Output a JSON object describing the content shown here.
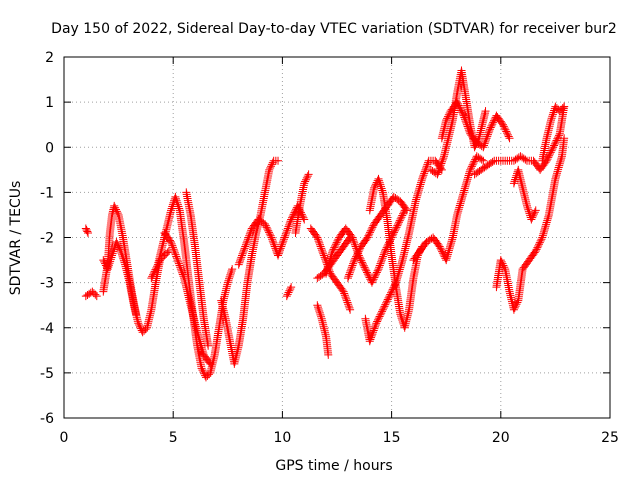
{
  "chart_data": {
    "type": "scatter",
    "title": "Day 150 of 2022, Sidereal Day-to-day VTEC variation (SDTVAR) for receiver bur2",
    "xlabel": "GPS time / hours",
    "ylabel": "SDTVAR / TECUs",
    "xlim": [
      0,
      25
    ],
    "ylim": [
      -6,
      2
    ],
    "xticks": [
      0,
      5,
      10,
      15,
      20,
      25
    ],
    "yticks": [
      -6,
      -5,
      -4,
      -3,
      -2,
      -1,
      0,
      1,
      2
    ],
    "xtick_labels": [
      "0",
      "5",
      "10",
      "15",
      "20",
      "25"
    ],
    "ytick_labels": [
      "-6",
      "-5",
      "-4",
      "-3",
      "-2",
      "-1",
      "0",
      "1",
      "2"
    ],
    "grid": true,
    "marker": "+",
    "series": [
      {
        "name": "bur2",
        "color": "#ff0000",
        "tracks": [
          [
            [
              1.0,
              -1.8
            ],
            [
              1.1,
              -1.9
            ]
          ],
          [
            [
              1.0,
              -3.3
            ],
            [
              1.3,
              -3.2
            ],
            [
              1.5,
              -3.3
            ]
          ],
          [
            [
              1.8,
              -2.5
            ],
            [
              2.0,
              -2.7
            ],
            [
              2.2,
              -2.4
            ],
            [
              2.4,
              -2.1
            ],
            [
              2.6,
              -2.3
            ],
            [
              2.8,
              -2.6
            ],
            [
              3.0,
              -3.0
            ],
            [
              3.2,
              -3.5
            ],
            [
              3.4,
              -3.9
            ],
            [
              3.6,
              -4.1
            ],
            [
              3.8,
              -4.0
            ],
            [
              4.0,
              -3.6
            ],
            [
              4.2,
              -3.0
            ],
            [
              4.4,
              -2.5
            ],
            [
              4.6,
              -2.4
            ],
            [
              4.8,
              -2.3
            ]
          ],
          [
            [
              1.8,
              -3.2
            ],
            [
              2.0,
              -2.6
            ],
            [
              2.1,
              -1.9
            ],
            [
              2.2,
              -1.5
            ],
            [
              2.3,
              -1.3
            ],
            [
              2.5,
              -1.5
            ],
            [
              2.7,
              -2.0
            ],
            [
              2.9,
              -2.6
            ],
            [
              3.1,
              -3.2
            ],
            [
              3.3,
              -3.7
            ]
          ],
          [
            [
              4.0,
              -2.9
            ],
            [
              4.3,
              -2.6
            ],
            [
              4.6,
              -2.0
            ],
            [
              4.9,
              -1.4
            ],
            [
              5.1,
              -1.1
            ],
            [
              5.3,
              -1.4
            ],
            [
              5.5,
              -2.1
            ],
            [
              5.7,
              -2.9
            ],
            [
              5.9,
              -3.7
            ],
            [
              6.1,
              -4.4
            ],
            [
              6.3,
              -4.9
            ],
            [
              6.5,
              -5.1
            ],
            [
              6.7,
              -5.0
            ],
            [
              6.9,
              -4.6
            ],
            [
              7.1,
              -4.0
            ],
            [
              7.3,
              -3.4
            ],
            [
              7.5,
              -3.0
            ],
            [
              7.7,
              -2.7
            ]
          ],
          [
            [
              4.6,
              -1.9
            ],
            [
              4.9,
              -2.1
            ],
            [
              5.2,
              -2.5
            ],
            [
              5.5,
              -2.9
            ],
            [
              5.8,
              -3.5
            ],
            [
              6.1,
              -4.1
            ],
            [
              6.4,
              -4.6
            ],
            [
              6.7,
              -4.8
            ]
          ],
          [
            [
              5.6,
              -1.0
            ],
            [
              5.8,
              -1.5
            ],
            [
              6.0,
              -2.2
            ],
            [
              6.2,
              -3.0
            ],
            [
              6.4,
              -3.8
            ],
            [
              6.6,
              -4.4
            ]
          ],
          [
            [
              7.2,
              -3.4
            ],
            [
              7.4,
              -3.8
            ],
            [
              7.6,
              -4.3
            ],
            [
              7.8,
              -4.8
            ],
            [
              8.0,
              -4.4
            ],
            [
              8.2,
              -3.8
            ],
            [
              8.4,
              -3.0
            ],
            [
              8.6,
              -2.4
            ],
            [
              8.8,
              -1.9
            ],
            [
              9.0,
              -1.5
            ],
            [
              9.2,
              -1.0
            ],
            [
              9.4,
              -0.5
            ],
            [
              9.6,
              -0.3
            ],
            [
              9.8,
              -0.3
            ]
          ],
          [
            [
              8.0,
              -2.6
            ],
            [
              8.3,
              -2.2
            ],
            [
              8.6,
              -1.8
            ],
            [
              8.9,
              -1.6
            ],
            [
              9.2,
              -1.7
            ],
            [
              9.5,
              -2.0
            ],
            [
              9.8,
              -2.4
            ],
            [
              10.1,
              -2.0
            ],
            [
              10.4,
              -1.6
            ],
            [
              10.7,
              -1.3
            ],
            [
              11.0,
              -1.6
            ]
          ],
          [
            [
              10.2,
              -3.3
            ],
            [
              10.4,
              -3.1
            ]
          ],
          [
            [
              10.6,
              -1.9
            ],
            [
              10.8,
              -1.3
            ],
            [
              11.0,
              -0.8
            ],
            [
              11.2,
              -0.6
            ]
          ],
          [
            [
              11.3,
              -1.8
            ],
            [
              11.6,
              -2.0
            ],
            [
              11.9,
              -2.4
            ],
            [
              12.2,
              -2.8
            ],
            [
              12.5,
              -3.0
            ],
            [
              12.8,
              -3.2
            ],
            [
              13.1,
              -3.6
            ]
          ],
          [
            [
              11.6,
              -3.5
            ],
            [
              11.8,
              -3.8
            ],
            [
              12.0,
              -4.2
            ],
            [
              12.1,
              -4.6
            ]
          ],
          [
            [
              11.6,
              -2.9
            ],
            [
              11.9,
              -2.8
            ],
            [
              12.2,
              -2.6
            ],
            [
              12.5,
              -2.4
            ],
            [
              12.8,
              -2.2
            ],
            [
              13.1,
              -2.0
            ]
          ],
          [
            [
              12.0,
              -2.8
            ],
            [
              12.3,
              -2.3
            ],
            [
              12.6,
              -2.0
            ],
            [
              12.9,
              -1.8
            ],
            [
              13.2,
              -2.0
            ],
            [
              13.5,
              -2.4
            ],
            [
              13.8,
              -2.7
            ],
            [
              14.1,
              -3.0
            ],
            [
              14.4,
              -2.7
            ],
            [
              14.7,
              -2.3
            ],
            [
              15.0,
              -2.0
            ],
            [
              15.3,
              -1.7
            ],
            [
              15.6,
              -1.4
            ]
          ],
          [
            [
              13.0,
              -2.9
            ],
            [
              13.3,
              -2.5
            ],
            [
              13.6,
              -2.2
            ],
            [
              13.9,
              -2.0
            ],
            [
              14.2,
              -1.7
            ],
            [
              14.5,
              -1.5
            ],
            [
              14.8,
              -1.3
            ],
            [
              15.1,
              -1.1
            ],
            [
              15.4,
              -1.2
            ],
            [
              15.7,
              -1.4
            ]
          ],
          [
            [
              13.8,
              -3.8
            ],
            [
              14.0,
              -4.3
            ],
            [
              14.3,
              -3.9
            ],
            [
              14.6,
              -3.6
            ],
            [
              14.9,
              -3.3
            ],
            [
              15.2,
              -3.0
            ],
            [
              15.5,
              -2.5
            ],
            [
              15.8,
              -1.9
            ],
            [
              16.1,
              -1.2
            ],
            [
              16.4,
              -0.7
            ],
            [
              16.7,
              -0.3
            ],
            [
              17.0,
              -0.3
            ],
            [
              17.3,
              -0.5
            ]
          ],
          [
            [
              14.0,
              -1.4
            ],
            [
              14.2,
              -0.9
            ],
            [
              14.4,
              -0.7
            ],
            [
              14.6,
              -1.0
            ],
            [
              14.8,
              -1.6
            ],
            [
              15.0,
              -2.4
            ],
            [
              15.2,
              -3.1
            ],
            [
              15.4,
              -3.7
            ],
            [
              15.6,
              -4.0
            ],
            [
              15.8,
              -3.6
            ],
            [
              16.0,
              -2.9
            ],
            [
              16.2,
              -2.4
            ],
            [
              16.4,
              -2.2
            ]
          ],
          [
            [
              16.0,
              -2.5
            ],
            [
              16.3,
              -2.3
            ],
            [
              16.6,
              -2.1
            ],
            [
              16.9,
              -2.0
            ],
            [
              17.2,
              -2.2
            ],
            [
              17.5,
              -2.5
            ],
            [
              17.8,
              -2.0
            ],
            [
              18.0,
              -1.5
            ],
            [
              18.3,
              -1.0
            ],
            [
              18.6,
              -0.5
            ],
            [
              18.9,
              -0.2
            ],
            [
              19.2,
              -0.3
            ]
          ],
          [
            [
              16.8,
              -0.5
            ],
            [
              17.1,
              -0.6
            ],
            [
              17.4,
              -0.2
            ],
            [
              17.6,
              0.2
            ],
            [
              17.8,
              0.6
            ],
            [
              18.0,
              1.2
            ],
            [
              18.2,
              1.7
            ],
            [
              18.4,
              1.1
            ],
            [
              18.6,
              0.5
            ],
            [
              18.8,
              0.0
            ],
            [
              19.0,
              0.2
            ],
            [
              19.3,
              0.8
            ]
          ],
          [
            [
              17.3,
              0.2
            ],
            [
              17.5,
              0.6
            ],
            [
              17.7,
              0.8
            ],
            [
              18.0,
              1.0
            ],
            [
              18.3,
              0.7
            ],
            [
              18.6,
              0.3
            ],
            [
              18.9,
              0.1
            ],
            [
              19.2,
              0.0
            ],
            [
              19.5,
              0.4
            ],
            [
              19.8,
              0.7
            ],
            [
              20.1,
              0.5
            ],
            [
              20.4,
              0.2
            ]
          ],
          [
            [
              18.8,
              -0.6
            ],
            [
              19.1,
              -0.5
            ],
            [
              19.4,
              -0.4
            ],
            [
              19.7,
              -0.3
            ],
            [
              20.0,
              -0.3
            ],
            [
              20.3,
              -0.3
            ],
            [
              20.6,
              -0.3
            ],
            [
              20.9,
              -0.2
            ],
            [
              21.2,
              -0.3
            ],
            [
              21.5,
              -0.3
            ],
            [
              21.8,
              -0.5
            ],
            [
              22.1,
              -0.3
            ],
            [
              22.4,
              0.0
            ],
            [
              22.7,
              0.3
            ],
            [
              22.9,
              0.9
            ]
          ],
          [
            [
              20.6,
              -0.8
            ],
            [
              20.8,
              -0.5
            ],
            [
              21.0,
              -0.9
            ],
            [
              21.2,
              -1.3
            ],
            [
              21.4,
              -1.6
            ],
            [
              21.6,
              -1.4
            ]
          ],
          [
            [
              19.8,
              -3.1
            ],
            [
              20.0,
              -2.5
            ],
            [
              20.2,
              -2.7
            ],
            [
              20.4,
              -3.2
            ],
            [
              20.6,
              -3.6
            ],
            [
              20.8,
              -3.4
            ],
            [
              21.0,
              -2.7
            ],
            [
              21.3,
              -2.5
            ],
            [
              21.6,
              -2.3
            ],
            [
              21.9,
              -2.0
            ],
            [
              22.2,
              -1.5
            ],
            [
              22.5,
              -0.7
            ],
            [
              22.8,
              -0.2
            ],
            [
              22.9,
              0.2
            ]
          ],
          [
            [
              21.9,
              -0.3
            ],
            [
              22.1,
              0.2
            ],
            [
              22.3,
              0.6
            ],
            [
              22.5,
              0.9
            ],
            [
              22.7,
              0.8
            ],
            [
              22.9,
              0.9
            ]
          ]
        ]
      }
    ]
  }
}
